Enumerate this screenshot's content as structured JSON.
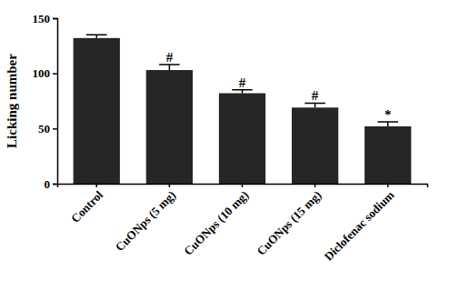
{
  "chart_data": {
    "type": "bar",
    "y_label": "Licking number",
    "categories": [
      "Control",
      "CuONps (5 mg)",
      "CuONps (10 mg)",
      "CuONps (15 mg)",
      "Diclofenac sodium"
    ],
    "values": [
      132,
      103,
      82,
      69,
      52
    ],
    "errors": [
      3,
      5,
      3,
      4,
      4
    ],
    "annotations": [
      null,
      "#",
      "#",
      "#",
      "*"
    ],
    "color": "#262626",
    "ylim": [
      0,
      150
    ],
    "yticks": [
      0,
      50,
      100,
      150
    ],
    "grid": false
  }
}
